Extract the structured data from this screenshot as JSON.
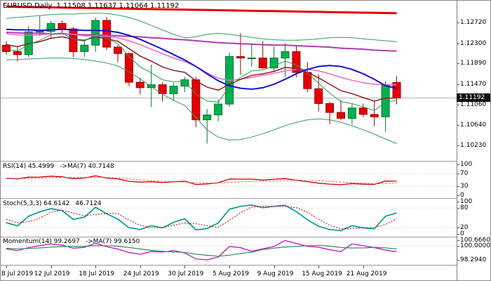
{
  "header": {
    "title": "EURUSD,Daily",
    "ohlc": "1.11508 1.11637 1.11064 1.11192"
  },
  "colors": {
    "background": "#ffffff",
    "up_fill": "#00b050",
    "up_border": "#00752f",
    "down_fill": "#e60000",
    "down_border": "#a00000",
    "bid_line": "#b4b4b4",
    "level_line": "#c8c8c8",
    "badge_bg": "#111111",
    "badge_text": "#ffffff"
  },
  "chart_data": [
    {
      "type": "candlestick",
      "symbol": "EURUSD",
      "timeframe": "Daily",
      "current_price": "1.11192",
      "y_range": [
        1.0992,
        1.1316
      ],
      "y_axis_labels": [
        "1.12720",
        "1.12300",
        "1.11890",
        "1.11470",
        "1.11060",
        "1.10640",
        "1.10230"
      ],
      "x_tick_labels": [
        "8 Jul 2019",
        "12 Jul 2019",
        "18 Jul 2019",
        "24 Jul 2019",
        "30 Jul 2019",
        "5 Aug 2019",
        "9 Aug 2019",
        "15 Aug 2019",
        "21 Aug 2019"
      ],
      "x_tick_indices": [
        0,
        4,
        8,
        12,
        16,
        20,
        24,
        28,
        32
      ],
      "open": [
        1.1226,
        1.1213,
        1.1207,
        1.1253,
        1.1254,
        1.127,
        1.1259,
        1.1213,
        1.1226,
        1.1276,
        1.1222,
        1.1209,
        1.1151,
        1.114,
        1.1146,
        1.1128,
        1.1143,
        1.1156,
        1.1075,
        1.1085,
        1.1107,
        1.1203,
        1.12,
        1.12,
        1.118,
        1.12,
        1.1213,
        1.1171,
        1.1138,
        1.1108,
        1.109,
        1.1078,
        1.1099,
        1.1086,
        1.1081,
        1.11508
      ],
      "high": [
        1.1234,
        1.1222,
        1.1265,
        1.1285,
        1.1275,
        1.1276,
        1.1263,
        1.1233,
        1.1282,
        1.1283,
        1.1226,
        1.1211,
        1.116,
        1.1187,
        1.1151,
        1.115,
        1.1162,
        1.1162,
        1.1096,
        1.1116,
        1.1211,
        1.125,
        1.1228,
        1.1234,
        1.1223,
        1.123,
        1.1225,
        1.1192,
        1.1167,
        1.1112,
        1.1114,
        1.1107,
        1.1108,
        1.1113,
        1.1153,
        1.11637
      ],
      "low": [
        1.1207,
        1.1193,
        1.1202,
        1.1245,
        1.1239,
        1.1252,
        1.1202,
        1.1202,
        1.1213,
        1.1216,
        1.1192,
        1.1143,
        1.1126,
        1.1101,
        1.1112,
        1.1113,
        1.1131,
        1.106,
        1.1027,
        1.1072,
        1.1101,
        1.1166,
        1.1183,
        1.1178,
        1.1173,
        1.1162,
        1.1161,
        1.1131,
        1.1092,
        1.1066,
        1.1075,
        1.1066,
        1.1081,
        1.1062,
        1.1051,
        1.11064
      ],
      "close": [
        1.1213,
        1.1207,
        1.1253,
        1.1254,
        1.127,
        1.1259,
        1.1213,
        1.1226,
        1.1276,
        1.1222,
        1.1209,
        1.1151,
        1.114,
        1.1146,
        1.1128,
        1.1143,
        1.1156,
        1.1075,
        1.1085,
        1.1107,
        1.1203,
        1.12,
        1.12,
        1.118,
        1.12,
        1.1213,
        1.1171,
        1.1138,
        1.1108,
        1.109,
        1.1078,
        1.1099,
        1.1086,
        1.1081,
        1.1145,
        1.11192
      ],
      "overlays": [
        {
          "name": "bollinger-upper",
          "color": "#2f9e63",
          "width": 1,
          "values": [
            1.128,
            1.1282,
            1.1284,
            1.1286,
            1.1288,
            1.1289,
            1.1289,
            1.129,
            1.1291,
            1.129,
            1.1287,
            1.1282,
            1.1275,
            1.1266,
            1.1257,
            1.1248,
            1.1241,
            1.1243,
            1.1248,
            1.125,
            1.1248,
            1.1245,
            1.1242,
            1.1239,
            1.1237,
            1.1236,
            1.1236,
            1.1237,
            1.1239,
            1.1241,
            1.1242,
            1.1241,
            1.1239,
            1.1237,
            1.1235,
            1.1233
          ]
        },
        {
          "name": "bollinger-lower",
          "color": "#2f9e63",
          "width": 1,
          "values": [
            1.1196,
            1.1197,
            1.1198,
            1.1199,
            1.12,
            1.12,
            1.1199,
            1.1197,
            1.1194,
            1.119,
            1.1184,
            1.1172,
            1.1158,
            1.1142,
            1.1127,
            1.1114,
            1.1104,
            1.108,
            1.1055,
            1.104,
            1.1034,
            1.1035,
            1.104,
            1.1047,
            1.1055,
            1.1063,
            1.107,
            1.1075,
            1.1077,
            1.1075,
            1.107,
            1.1063,
            1.1055,
            1.1046,
            1.1036,
            1.1027
          ]
        },
        {
          "name": "sma-100",
          "color": "#b23ab2",
          "width": 2,
          "values": [
            1.1252,
            1.1251,
            1.125,
            1.125,
            1.1249,
            1.1249,
            1.1248,
            1.1247,
            1.1247,
            1.1246,
            1.1245,
            1.1244,
            1.1243,
            1.1241,
            1.124,
            1.1238,
            1.1237,
            1.1235,
            1.1233,
            1.1231,
            1.123,
            1.1229,
            1.1228,
            1.1227,
            1.1226,
            1.1226,
            1.1225,
            1.1224,
            1.1223,
            1.1222,
            1.122,
            1.1219,
            1.1218,
            1.1216,
            1.1215,
            1.1214
          ]
        },
        {
          "name": "ema-21",
          "color": "#ee66cc",
          "width": 1.5,
          "values": [
            1.1249,
            1.1247,
            1.1246,
            1.1247,
            1.1249,
            1.125,
            1.1248,
            1.1245,
            1.1245,
            1.1244,
            1.1241,
            1.1235,
            1.1227,
            1.1218,
            1.1209,
            1.12,
            1.1193,
            1.1183,
            1.117,
            1.1159,
            1.1155,
            1.1157,
            1.1161,
            1.1165,
            1.1169,
            1.1174,
            1.1177,
            1.1177,
            1.1174,
            1.1168,
            1.1161,
            1.1155,
            1.115,
            1.1147,
            1.1146,
            1.1146
          ]
        },
        {
          "name": "ema-10",
          "color": "#8b2020",
          "width": 1.5,
          "values": [
            1.1227,
            1.1223,
            1.1229,
            1.1233,
            1.124,
            1.1243,
            1.1238,
            1.1236,
            1.1243,
            1.1239,
            1.1234,
            1.1219,
            1.1204,
            1.1194,
            1.1182,
            1.1175,
            1.1171,
            1.1154,
            1.1141,
            1.1135,
            1.1147,
            1.1157,
            1.1165,
            1.1168,
            1.1173,
            1.1181,
            1.1179,
            1.1171,
            1.116,
            1.1147,
            1.1134,
            1.1128,
            1.112,
            1.1113,
            1.1119,
            1.1119
          ]
        },
        {
          "name": "ema-5",
          "color": "#2a9d4e",
          "width": 1,
          "values": [
            1.1218,
            1.1214,
            1.1227,
            1.1236,
            1.1247,
            1.1251,
            1.1238,
            1.1234,
            1.1248,
            1.1239,
            1.1229,
            1.1203,
            1.1182,
            1.117,
            1.1156,
            1.1152,
            1.1153,
            1.1127,
            1.1113,
            1.1111,
            1.1142,
            1.1161,
            1.1174,
            1.1176,
            1.1184,
            1.1194,
            1.1186,
            1.117,
            1.1149,
            1.1129,
            1.1112,
            1.1108,
            1.1101,
            1.1094,
            1.1111,
            1.1114
          ]
        },
        {
          "name": "sma-20",
          "color": "#1414cc",
          "width": 2,
          "values": [
            1.1258,
            1.1257,
            1.1257,
            1.1256,
            1.1257,
            1.1258,
            1.1257,
            1.1256,
            1.1256,
            1.1255,
            1.1252,
            1.1246,
            1.1238,
            1.1228,
            1.1218,
            1.1207,
            1.1196,
            1.1183,
            1.1168,
            1.1154,
            1.1144,
            1.1139,
            1.1137,
            1.114,
            1.1147,
            1.1157,
            1.1168,
            1.1177,
            1.1183,
            1.1185,
            1.1183,
            1.1177,
            1.1168,
            1.1157,
            1.1144,
            1.1139
          ]
        },
        {
          "name": "sma-200",
          "color": "#e60000",
          "width": 3,
          "values": [
            1.1304,
            1.13036,
            1.13032,
            1.13029,
            1.13025,
            1.13021,
            1.13017,
            1.13013,
            1.1301,
            1.13006,
            1.13002,
            1.12998,
            1.12994,
            1.12991,
            1.12987,
            1.12983,
            1.12979,
            1.12975,
            1.12972,
            1.12968,
            1.12964,
            1.1296,
            1.12956,
            1.12953,
            1.12949,
            1.12945,
            1.12941,
            1.12937,
            1.12934,
            1.1293,
            1.12926,
            1.12922,
            1.12918,
            1.12915,
            1.12911,
            1.12907
          ]
        }
      ]
    },
    {
      "type": "line",
      "name": "RSI",
      "label": "RSI(14) 45.4999",
      "label2": "->MA(7) 40.7148",
      "y_range": [
        -8,
        108
      ],
      "levels": [
        30,
        70
      ],
      "y_axis_labels": [
        "100",
        "70",
        "30",
        "0"
      ],
      "series": [
        {
          "name": "rsi",
          "color": "#cc0000",
          "width": 1.3,
          "values": [
            55.2,
            52.8,
            58.4,
            58.9,
            61.7,
            59.6,
            53.8,
            55.9,
            62.8,
            55.6,
            53.2,
            45.3,
            42.8,
            44.0,
            41.4,
            43.9,
            45.8,
            35.2,
            36.8,
            40.9,
            52.7,
            52.2,
            52.3,
            49.4,
            52.1,
            54.0,
            48.7,
            44.2,
            39.5,
            36.4,
            34.5,
            38.2,
            36.1,
            35.4,
            46.3,
            45.4999
          ]
        },
        {
          "name": "rsi-ma",
          "color": "#e06060",
          "width": 1,
          "dash": "3 2",
          "values": [
            54.0,
            53.8,
            54.6,
            55.6,
            57.2,
            57.9,
            57.3,
            57.2,
            58.0,
            57.5,
            56.3,
            53.0,
            49.9,
            47.7,
            45.1,
            43.7,
            43.1,
            41.0,
            39.7,
            39.7,
            41.9,
            43.6,
            45.2,
            45.6,
            46.5,
            47.8,
            48.6,
            48.2,
            47.1,
            45.4,
            43.1,
            41.4,
            39.4,
            37.4,
            38.1,
            40.7148
          ]
        }
      ]
    },
    {
      "type": "line",
      "name": "Stochastic",
      "label": "Stoch(5,3,3) 64.6142",
      "label2": "46.7124",
      "y_range": [
        -8,
        108
      ],
      "levels": [
        20,
        80
      ],
      "y_axis_labels": [
        "100",
        "80",
        "20",
        "0"
      ],
      "series": [
        {
          "name": "stoch-k",
          "color": "#089b9b",
          "width": 1.7,
          "values": [
            35,
            25,
            55,
            68,
            78,
            72,
            45,
            52,
            82,
            62,
            46,
            20,
            14,
            26,
            19,
            36,
            47,
            13,
            17,
            34,
            76,
            85,
            89,
            81,
            85,
            88,
            69,
            44,
            24,
            14,
            11,
            26,
            19,
            16,
            55,
            64.6142
          ]
        },
        {
          "name": "stoch-d",
          "color": "#cc0000",
          "width": 1,
          "dash": "2 2",
          "values": [
            45,
            35,
            38,
            49,
            67,
            73,
            65,
            56,
            60,
            63,
            63,
            43,
            27,
            20,
            20,
            27,
            34,
            32,
            26,
            21,
            42,
            65,
            83,
            85,
            85,
            85,
            81,
            67,
            46,
            27,
            16,
            17,
            19,
            20,
            30,
            46.7124
          ]
        }
      ]
    },
    {
      "type": "line",
      "name": "Momentum",
      "label": "Momentum(14) 99.2697",
      "label2": "->MA(7) 99.6150",
      "y_range": [
        97.7,
        101.0
      ],
      "levels": [
        100
      ],
      "y_axis_labels": [
        "100.6660",
        "100.0000",
        "98.2940"
      ],
      "series": [
        {
          "name": "momentum",
          "color": "#cc00cc",
          "width": 1.2,
          "values": [
            99.62,
            99.41,
            99.78,
            100.02,
            100.21,
            100.08,
            99.7,
            99.81,
            100.3,
            99.88,
            99.6,
            99.18,
            98.98,
            99.31,
            99.24,
            99.43,
            99.14,
            98.41,
            98.29,
            98.65,
            99.91,
            99.77,
            99.33,
            99.63,
            99.92,
            100.63,
            100.28,
            99.93,
            99.82,
            99.52,
            99.3,
            100.22,
            100.01,
            99.77,
            99.48,
            99.2697
          ]
        },
        {
          "name": "momentum-ma",
          "color": "#2e8b57",
          "width": 1.2,
          "values": [
            99.7,
            99.62,
            99.66,
            99.74,
            99.83,
            99.9,
            99.92,
            99.93,
            100.0,
            100.0,
            99.94,
            99.79,
            99.61,
            99.44,
            99.33,
            99.26,
            99.2,
            98.99,
            98.85,
            98.74,
            98.86,
            99.07,
            99.21,
            99.55,
            99.71,
            99.85,
            99.92,
            100.0,
            100.04,
            99.95,
            99.79,
            99.73,
            99.74,
            99.81,
            99.75,
            99.615
          ]
        }
      ]
    }
  ]
}
